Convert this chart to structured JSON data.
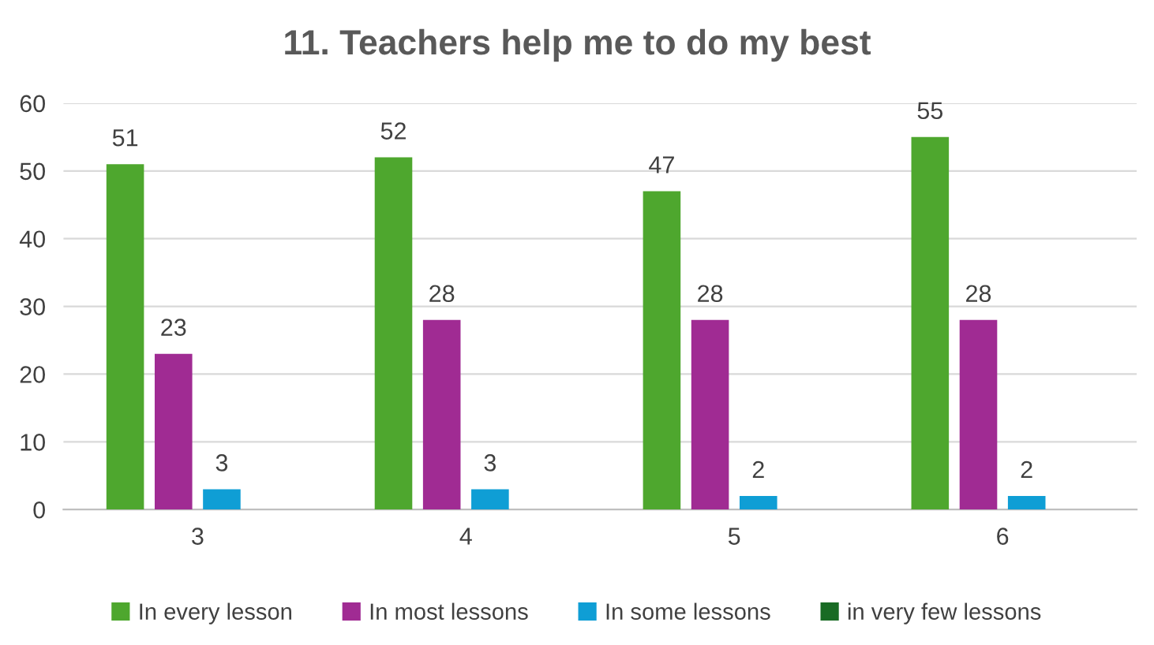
{
  "chart_data": {
    "type": "bar",
    "title": "11. Teachers help me to do my best",
    "categories": [
      "3",
      "4",
      "5",
      "6"
    ],
    "series": [
      {
        "name": "In every lesson",
        "color": "#4ea72e",
        "values": [
          51,
          52,
          47,
          55
        ],
        "value_labels": [
          "51",
          "52",
          "47",
          "55"
        ]
      },
      {
        "name": "In most lessons",
        "color": "#a02b93",
        "values": [
          23,
          28,
          28,
          28
        ],
        "value_labels": [
          "23",
          "28",
          "28",
          "28"
        ]
      },
      {
        "name": "In some lessons",
        "color": "#0f9ed5",
        "values": [
          3,
          3,
          2,
          2
        ],
        "value_labels": [
          "3",
          "3",
          "2",
          "2"
        ]
      },
      {
        "name": "in very few lessons",
        "color": "#196b24",
        "values": [
          null,
          null,
          null,
          null
        ],
        "value_labels": [
          null,
          null,
          null,
          null
        ]
      }
    ],
    "ylim": [
      0,
      60
    ],
    "yticks": [
      0,
      10,
      20,
      30,
      40,
      50,
      60
    ],
    "grid": "y",
    "legend": "bottom"
  }
}
